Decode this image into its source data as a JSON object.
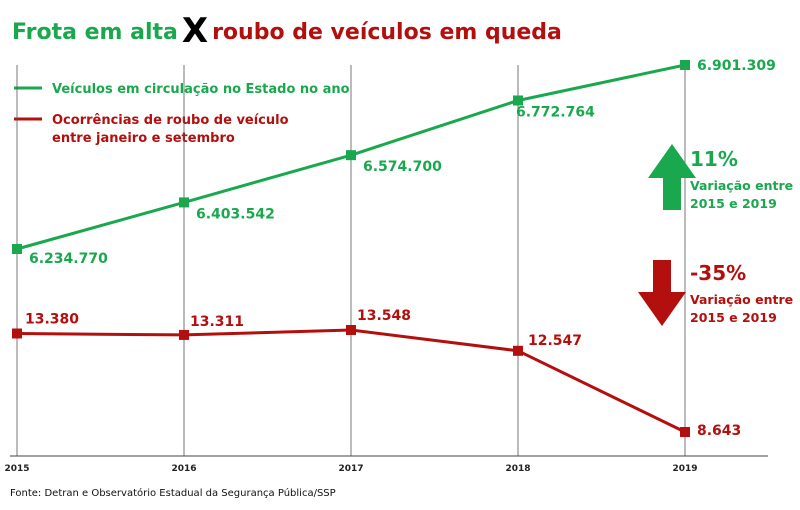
{
  "title": {
    "part_a": "Frota em alta",
    "x_mark": "X",
    "part_b": "roubo de veículos em queda"
  },
  "colors": {
    "green": "#1aa84f",
    "red": "#b30f0f",
    "axis": "#444444"
  },
  "legend": {
    "fleet": "Veículos em circulação no Estado no ano",
    "theft_line1": "Ocorrências de roubo de veículo",
    "theft_line2": "entre janeiro e setembro"
  },
  "chart_data": {
    "type": "line",
    "categories": [
      "2015",
      "2016",
      "2017",
      "2018",
      "2019"
    ],
    "series": [
      {
        "name": "Veículos em circulação no Estado no ano",
        "values": [
          6234770,
          6403542,
          6574700,
          6772764,
          6901309
        ],
        "labels": [
          "6.234.770",
          "6.403.542",
          "6.574.700",
          "6.772.764",
          "6.901.309"
        ],
        "color": "#1aa84f"
      },
      {
        "name": "Ocorrências de roubo de veículo entre janeiro e setembro",
        "values": [
          13380,
          13311,
          13548,
          12547,
          8643
        ],
        "labels": [
          "13.380",
          "13.311",
          "13.548",
          "12.547",
          "8.643"
        ],
        "color": "#b30f0f"
      }
    ]
  },
  "annotations": {
    "up": {
      "pct": "11%",
      "line1": "Variação entre",
      "line2": "2015 e 2019",
      "icon": "arrow-up-icon"
    },
    "down": {
      "pct": "-35%",
      "line1": "Variação entre",
      "line2": "2015 e 2019",
      "icon": "arrow-down-icon"
    }
  },
  "source": "Fonte: Detran e Observatório Estadual da Segurança Pública/SSP"
}
